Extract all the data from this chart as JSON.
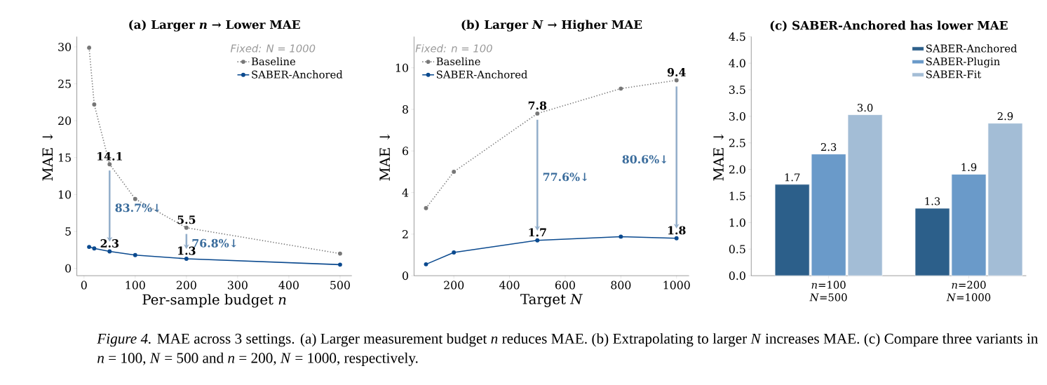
{
  "chart_data": [
    {
      "type": "line",
      "title": "(a) Larger *n* → Lower MAE",
      "xlabel": "Per-sample budget *n*",
      "ylabel": "MAE ↓",
      "legend_title": "Fixed: N = 1000",
      "legend": "top right",
      "marker": "circle",
      "x": [
        10,
        20,
        50,
        100,
        200,
        500
      ],
      "series": [
        {
          "name": "Baseline",
          "color": "#777777",
          "line_style": "dotted",
          "values": [
            29.9,
            22.2,
            14.1,
            9.4,
            5.5,
            2.0
          ],
          "value_labels": [
            null,
            null,
            "14.1",
            null,
            "5.5",
            null
          ]
        },
        {
          "name": "SABER-Anchored",
          "color": "#0b4a8f",
          "line_style": "solid",
          "values": [
            2.9,
            2.7,
            2.3,
            1.8,
            1.3,
            0.5
          ],
          "value_labels": [
            null,
            null,
            "2.3",
            null,
            "1.3",
            null
          ]
        }
      ],
      "xlim": [
        -14,
        523
      ],
      "ylim": [
        -1,
        31.4
      ],
      "xticks": [
        0,
        100,
        200,
        300,
        400,
        500
      ],
      "yticks": [
        0,
        5,
        10,
        15,
        20,
        25,
        30
      ],
      "annotations": [
        "83.7%↓",
        "76.8%↓",
        "*Figure 4.* MAE across 3 settings. (a) Larger measurement budget *n* reduces MAE. (b) Extrapolating to larger *N* increases MAE. (c) Compare three variants in *n* = 100, *N* = 500 and *n* = 200, *N* = 1000, respectively."
      ]
    },
    {
      "type": "line",
      "title": "(b) Larger *N* → Higher MAE",
      "xlabel": "Target *N*",
      "ylabel": "MAE ↓",
      "legend_title": "Fixed: n = 100",
      "legend": "top left",
      "marker": "circle",
      "x": [
        100,
        200,
        500,
        800,
        1000
      ],
      "series": [
        {
          "name": "Baseline",
          "color": "#777777",
          "line_style": "dotted",
          "values": [
            3.25,
            5.0,
            7.8,
            9.0,
            9.4
          ],
          "value_labels": [
            null,
            null,
            "7.8",
            null,
            "9.4"
          ]
        },
        {
          "name": "SABER-Anchored",
          "color": "#0b4a8f",
          "line_style": "solid",
          "values": [
            0.55,
            1.12,
            1.7,
            1.88,
            1.8
          ],
          "value_labels": [
            null,
            null,
            "1.7",
            null,
            "1.8"
          ]
        }
      ],
      "xlim": [
        57,
        1045
      ],
      "ylim": [
        0,
        11.5
      ],
      "xticks": [
        200,
        400,
        600,
        800,
        1000
      ],
      "yticks": [
        0,
        2,
        4,
        6,
        8,
        10
      ],
      "annotations": [
        "77.6%↓",
        "80.6%↓"
      ]
    },
    {
      "type": "bar",
      "title": "(c) SABER-Anchored has lower MAE",
      "ylabel": "MAE ↓",
      "legend": "top right",
      "categories": [
        "*n*=100\n*N*=500",
        "*n*=200\n*N*=1000"
      ],
      "series": [
        {
          "name": "SABER-Anchored",
          "color": "#2c5f8a",
          "values": [
            1.72,
            1.27
          ],
          "value_labels": [
            "1.7",
            "1.3"
          ]
        },
        {
          "name": "SABER-Plugin",
          "color": "#6a9ac9",
          "values": [
            2.29,
            1.91
          ],
          "value_labels": [
            "2.3",
            "1.9"
          ]
        },
        {
          "name": "SABER-Fit",
          "color": "#a3bdd6",
          "values": [
            3.03,
            2.87
          ],
          "value_labels": [
            "3.0",
            "2.9"
          ]
        }
      ],
      "ylim": [
        0,
        4.5
      ],
      "yticks": [
        {
          "value": 0,
          "label": "0.0"
        },
        {
          "value": 0.5,
          "label": "0.5"
        },
        {
          "value": 1,
          "label": "1.0"
        },
        {
          "value": 1.5,
          "label": "1.5"
        },
        {
          "value": 2,
          "label": "2.0"
        },
        {
          "value": 2.5,
          "label": "2.5"
        },
        {
          "value": 3,
          "label": "3.0"
        },
        {
          "value": 3.5,
          "label": "3.5"
        },
        {
          "value": 4,
          "label": "4.0"
        },
        {
          "value": 4.5,
          "label": "4.5"
        }
      ]
    }
  ]
}
